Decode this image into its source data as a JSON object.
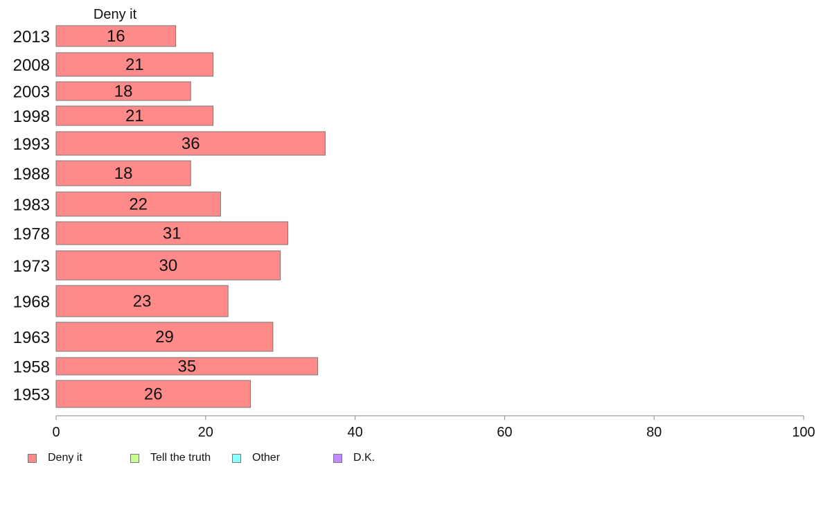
{
  "chart_data": {
    "type": "bar",
    "orientation": "horizontal",
    "panel_title": "Deny it",
    "categories": [
      "2013",
      "2008",
      "2003",
      "1998",
      "1993",
      "1988",
      "1983",
      "1978",
      "1973",
      "1968",
      "1963",
      "1958",
      "1953"
    ],
    "series": [
      {
        "name": "Deny it",
        "color": "#ff8a8a",
        "values": [
          16,
          21,
          18,
          21,
          36,
          18,
          22,
          31,
          30,
          23,
          29,
          35,
          26
        ],
        "labels": [
          "16",
          "21",
          "18",
          "21",
          "36",
          "18",
          "22",
          "31",
          "30",
          "23",
          "29",
          "35",
          "26"
        ]
      }
    ],
    "x_axis": {
      "range": [
        0,
        100
      ],
      "ticks": [
        0,
        20,
        40,
        60,
        80,
        100
      ]
    },
    "legend": {
      "placement": "bottom-left",
      "items": [
        {
          "label": "Deny it",
          "color": "#ff8a8a"
        },
        {
          "label": "Tell the truth",
          "color": "#c6ff8c"
        },
        {
          "label": "Other",
          "color": "#8cffff"
        },
        {
          "label": "D.K.",
          "color": "#c08cff"
        }
      ]
    },
    "grid": false
  }
}
